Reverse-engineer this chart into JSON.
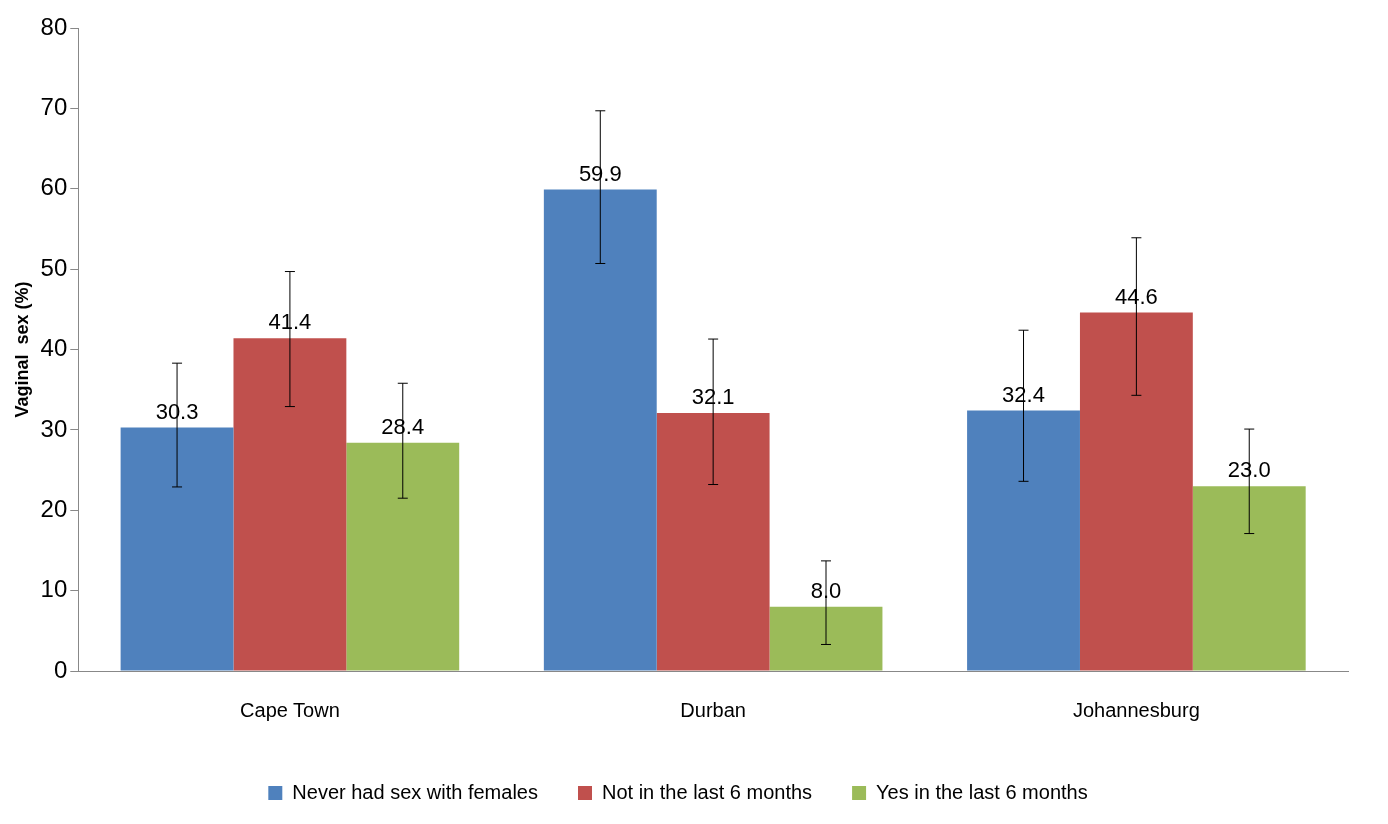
{
  "chart_data": {
    "type": "bar",
    "ylabel": "Vaginal  sex (%)",
    "categories": [
      "Cape Town",
      "Durban",
      "Johannesburg"
    ],
    "series": [
      {
        "name": "Never had sex with females",
        "color": "#4f81bd",
        "values": [
          30.3,
          59.9,
          32.4
        ],
        "value_labels": [
          "30.3",
          "59.9",
          "32.4"
        ],
        "errors": [
          [
            22.9,
            38.3
          ],
          [
            50.7,
            69.7
          ],
          [
            23.6,
            42.4
          ]
        ]
      },
      {
        "name": "Not in the last 6 months",
        "color": "#c0504d",
        "values": [
          41.4,
          32.1,
          44.6
        ],
        "value_labels": [
          "41.4",
          "32.1",
          "44.6"
        ],
        "errors": [
          [
            32.9,
            49.7
          ],
          [
            23.2,
            41.3
          ],
          [
            34.3,
            53.9
          ]
        ]
      },
      {
        "name": "Yes in the last 6 months",
        "color": "#9bbb59",
        "values": [
          28.4,
          8.0,
          23.0
        ],
        "value_labels": [
          "28.4",
          "8.0",
          "23.0"
        ],
        "errors": [
          [
            21.5,
            35.8
          ],
          [
            3.3,
            13.7
          ],
          [
            17.1,
            30.1
          ]
        ]
      }
    ],
    "ylim": [
      0,
      80
    ],
    "yticks": [
      0,
      10,
      20,
      30,
      40,
      50,
      60,
      70,
      80
    ],
    "grid": false,
    "legend": "bottom"
  }
}
